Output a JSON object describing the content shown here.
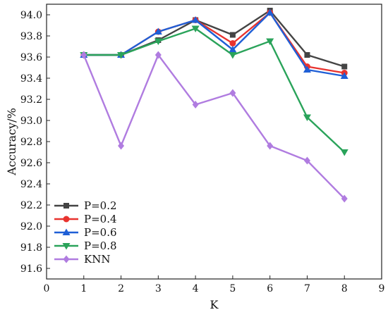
{
  "chart_data": {
    "type": "line",
    "title": "",
    "xlabel": "K",
    "ylabel": "Accuracy/%",
    "xlim": [
      0,
      9
    ],
    "ylim": [
      91.5,
      94.1
    ],
    "xticks": [
      0,
      1,
      2,
      3,
      4,
      5,
      6,
      7,
      8,
      9
    ],
    "yticks": [
      91.6,
      91.8,
      92.0,
      92.2,
      92.4,
      92.6,
      92.8,
      93.0,
      93.2,
      93.4,
      93.6,
      93.8,
      94.0
    ],
    "ytick_labels": [
      "91.6",
      "91.8",
      "92.0",
      "92.2",
      "92.4",
      "92.6",
      "92.8",
      "93.0",
      "93.2",
      "93.4",
      "93.6",
      "93.8",
      "94.0"
    ],
    "x": [
      1,
      2,
      3,
      4,
      5,
      6,
      7,
      8
    ],
    "grid": false,
    "legend_position": "bottom-left",
    "series": [
      {
        "name": "P=0.2",
        "color": "#444444",
        "marker": "square",
        "values": [
          93.62,
          93.62,
          93.76,
          93.95,
          93.81,
          94.04,
          93.62,
          93.51
        ]
      },
      {
        "name": "P=0.4",
        "color": "#e8332f",
        "marker": "circle",
        "values": [
          93.62,
          93.62,
          93.84,
          93.95,
          93.73,
          94.02,
          93.51,
          93.45
        ]
      },
      {
        "name": "P=0.6",
        "color": "#1f5fd6",
        "marker": "triangle-up",
        "values": [
          93.62,
          93.62,
          93.84,
          93.95,
          93.67,
          94.02,
          93.48,
          93.42
        ]
      },
      {
        "name": "P=0.8",
        "color": "#2aa35a",
        "marker": "triangle-down",
        "values": [
          93.62,
          93.62,
          93.75,
          93.87,
          93.62,
          93.75,
          93.03,
          92.7
        ]
      },
      {
        "name": "KNN",
        "color": "#b07ce0",
        "marker": "diamond",
        "values": [
          93.62,
          92.76,
          93.62,
          93.15,
          93.26,
          92.76,
          92.62,
          92.26
        ]
      }
    ]
  }
}
